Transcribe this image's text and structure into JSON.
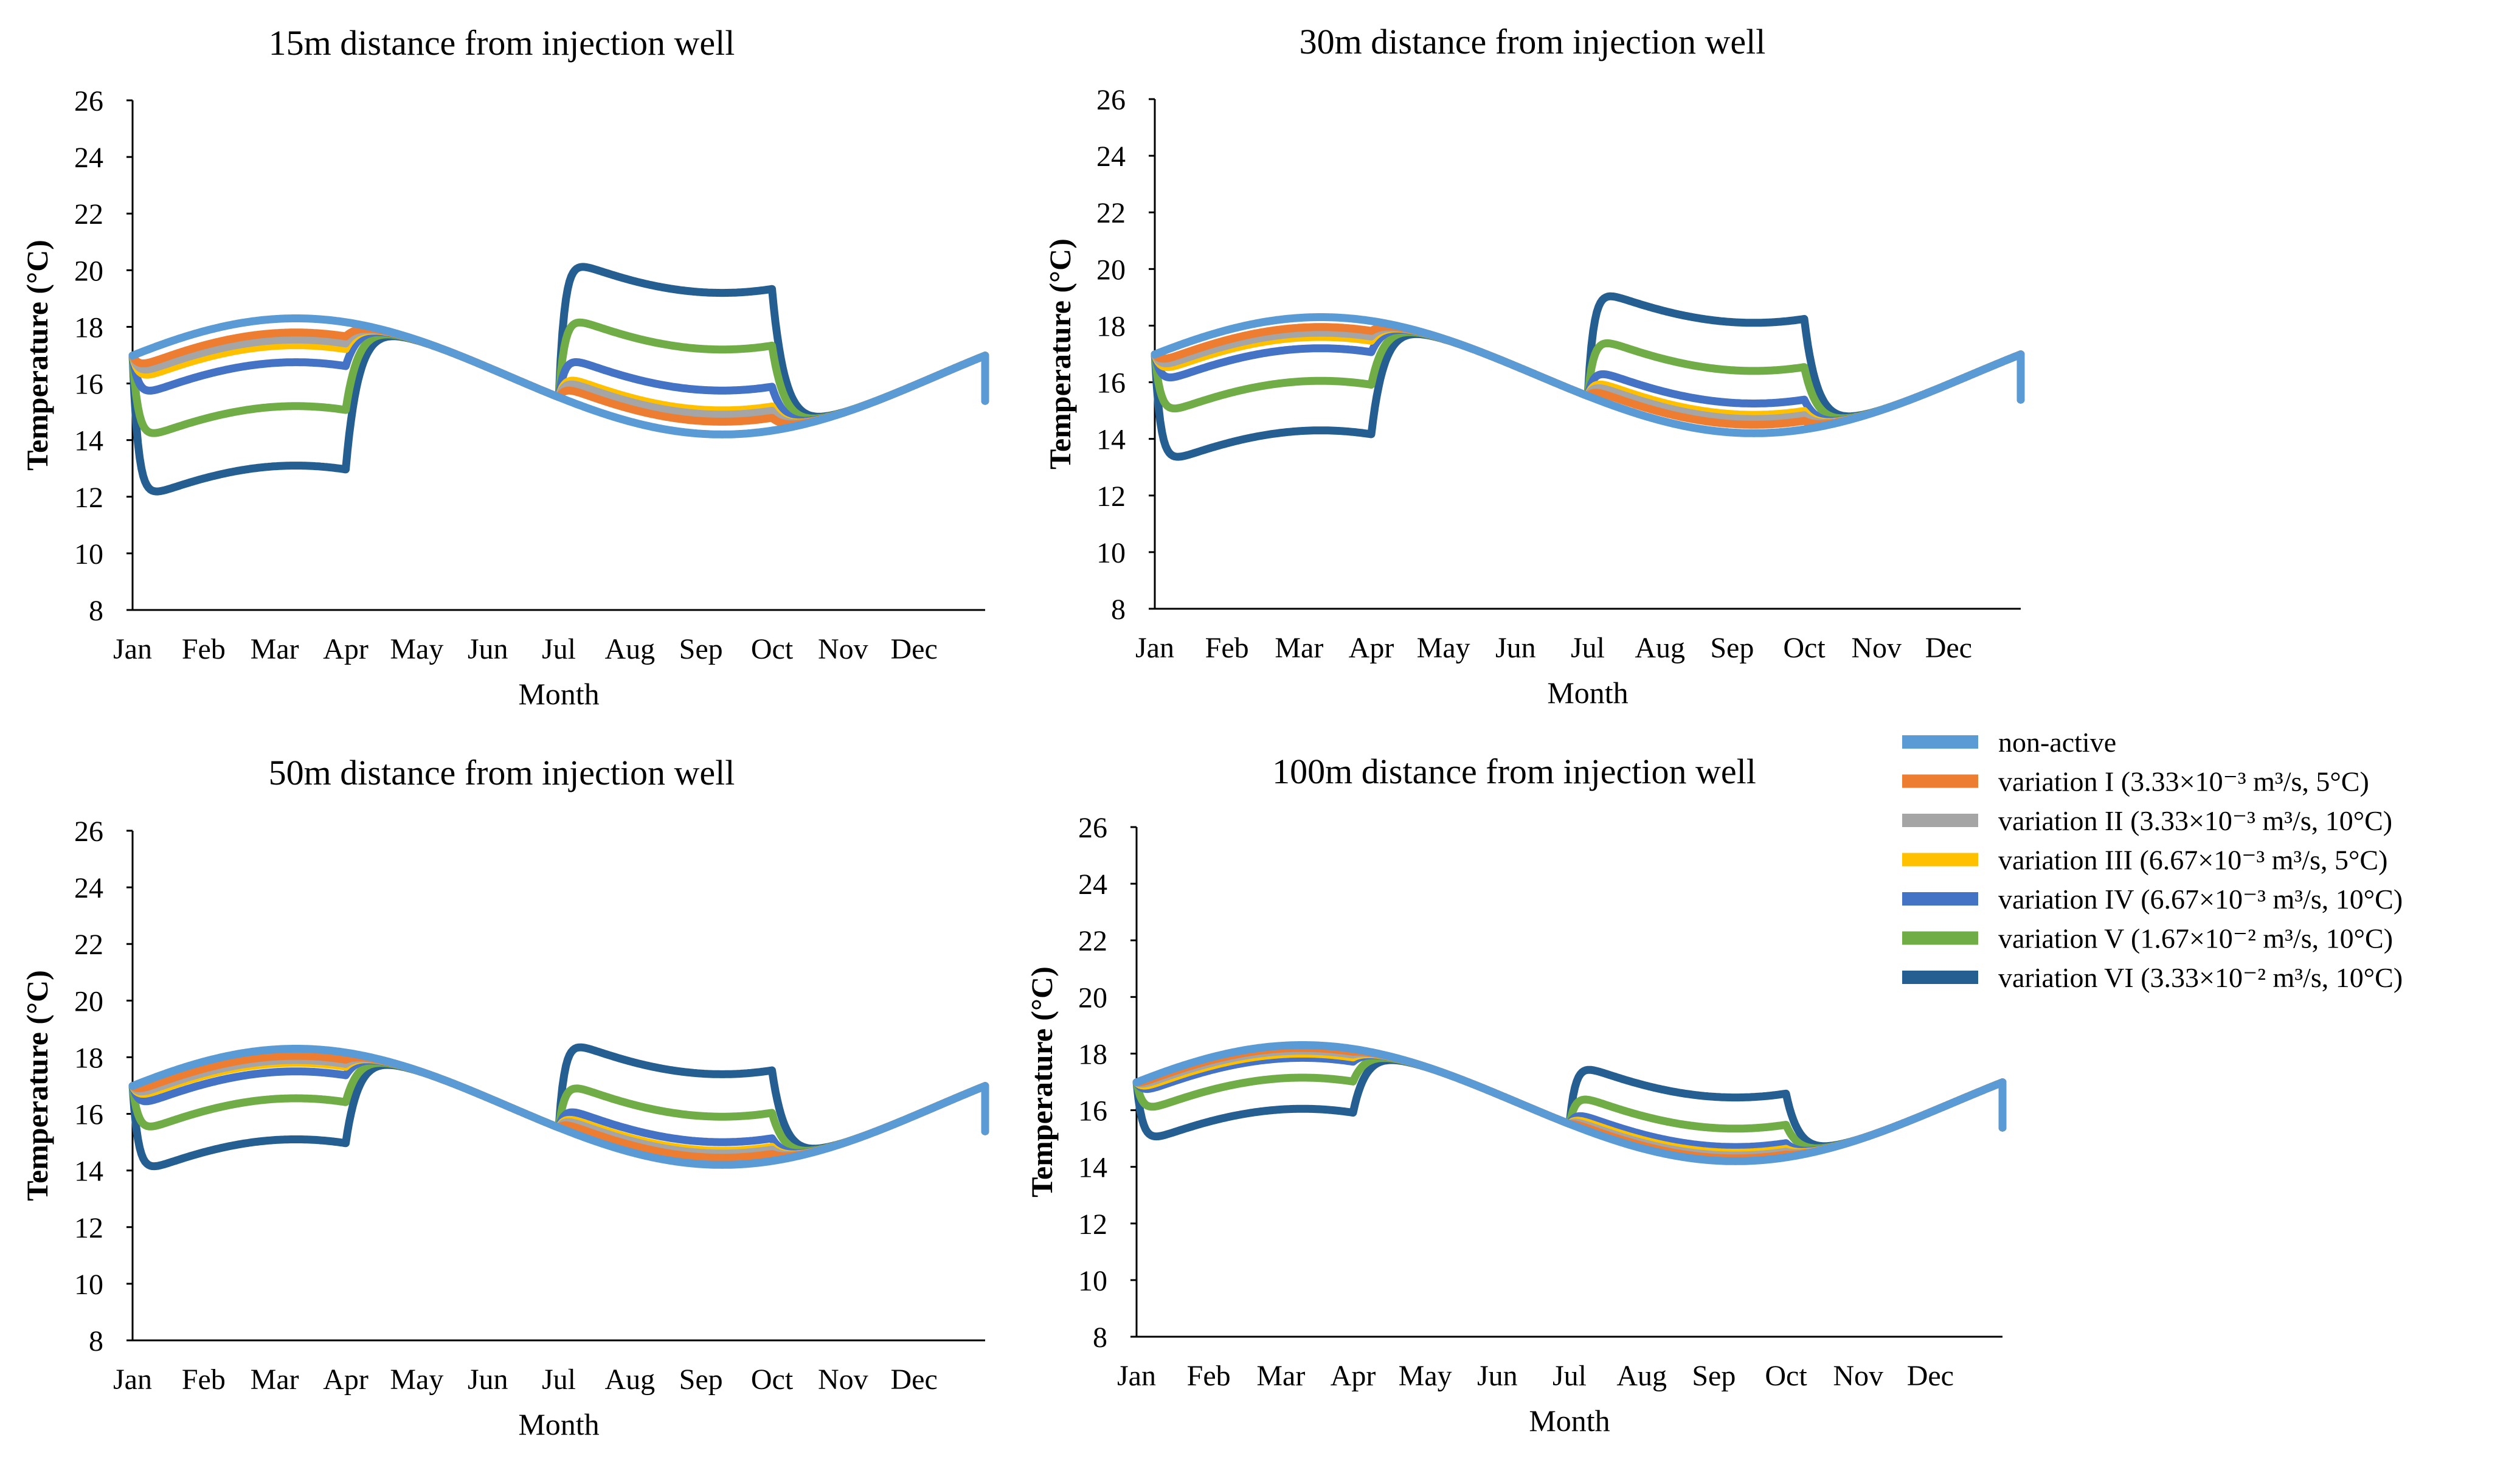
{
  "chart_data": [
    {
      "type": "line",
      "title": "15m distance from injection well",
      "xlabel": "Month",
      "ylabel": "Temperature (°C)",
      "ylim": [
        8,
        26
      ],
      "yticks": [
        8,
        10,
        12,
        14,
        16,
        18,
        20,
        22,
        24,
        26
      ],
      "categories": [
        "Jan",
        "Feb",
        "Mar",
        "Apr",
        "May",
        "Jun",
        "Jul",
        "Aug",
        "Sep",
        "Oct",
        "Nov",
        "Dec"
      ],
      "grid": false,
      "offsets": {
        "winter": [
          0.0,
          -0.5,
          -0.75,
          -0.95,
          -1.55,
          -3.1,
          -5.2
        ],
        "summer": [
          0.0,
          0.45,
          0.7,
          0.85,
          1.55,
          3.0,
          5.0
        ]
      }
    },
    {
      "type": "line",
      "title": "30m distance from injection well",
      "xlabel": "Month",
      "ylabel": "Temperature (°C)",
      "ylim": [
        8,
        26
      ],
      "yticks": [
        8,
        10,
        12,
        14,
        16,
        18,
        20,
        22,
        24,
        26
      ],
      "categories": [
        "Jan",
        "Feb",
        "Mar",
        "Apr",
        "May",
        "Jun",
        "Jul",
        "Aug",
        "Sep",
        "Oct",
        "Nov",
        "Dec"
      ],
      "grid": false,
      "offsets": {
        "winter": [
          0.0,
          -0.35,
          -0.55,
          -0.7,
          -1.1,
          -2.25,
          -4.0
        ],
        "summer": [
          0.0,
          0.3,
          0.5,
          0.65,
          1.05,
          2.2,
          3.9
        ]
      }
    },
    {
      "type": "line",
      "title": "50m distance from injection well",
      "xlabel": "Month",
      "ylabel": "Temperature (°C)",
      "ylim": [
        8,
        26
      ],
      "yticks": [
        8,
        10,
        12,
        14,
        16,
        18,
        20,
        22,
        24,
        26
      ],
      "categories": [
        "Jan",
        "Feb",
        "Mar",
        "Apr",
        "May",
        "Jun",
        "Jul",
        "Aug",
        "Sep",
        "Oct",
        "Nov",
        "Dec"
      ],
      "grid": false,
      "offsets": {
        "winter": [
          0.0,
          -0.25,
          -0.4,
          -0.5,
          -0.8,
          -1.75,
          -3.2
        ],
        "summer": [
          0.0,
          0.25,
          0.4,
          0.5,
          0.8,
          1.7,
          3.2
        ]
      }
    },
    {
      "type": "line",
      "title": "100m distance from injection well",
      "xlabel": "Month",
      "ylabel": "Temperature (°C)",
      "ylim": [
        8,
        26
      ],
      "yticks": [
        8,
        10,
        12,
        14,
        16,
        18,
        20,
        22,
        24,
        26
      ],
      "categories": [
        "Jan",
        "Feb",
        "Mar",
        "Apr",
        "May",
        "Jun",
        "Jul",
        "Aug",
        "Sep",
        "Oct",
        "Nov",
        "Dec"
      ],
      "grid": false,
      "offsets": {
        "winter": [
          0.0,
          -0.1,
          -0.2,
          -0.3,
          -0.45,
          -1.15,
          -2.25
        ],
        "summer": [
          0.0,
          0.1,
          0.2,
          0.3,
          0.5,
          1.15,
          2.25
        ]
      }
    }
  ],
  "legend": {
    "position": "right",
    "entries": [
      {
        "label": "non-active",
        "color": "#5B9BD5"
      },
      {
        "label": "variation I (3.33×10⁻³ m³/s, 5°C)",
        "color": "#ED7D31"
      },
      {
        "label": "variation II (3.33×10⁻³ m³/s, 10°C)",
        "color": "#A5A5A5"
      },
      {
        "label": "variation III (6.67×10⁻³ m³/s, 5°C)",
        "color": "#FFC000"
      },
      {
        "label": "variation IV (6.67×10⁻³ m³/s, 10°C)",
        "color": "#4472C4"
      },
      {
        "label": "variation V (1.67×10⁻² m³/s, 10°C)",
        "color": "#70AD47"
      },
      {
        "label": "variation VI (3.33×10⁻² m³/s, 10°C)",
        "color": "#255E91"
      }
    ]
  }
}
